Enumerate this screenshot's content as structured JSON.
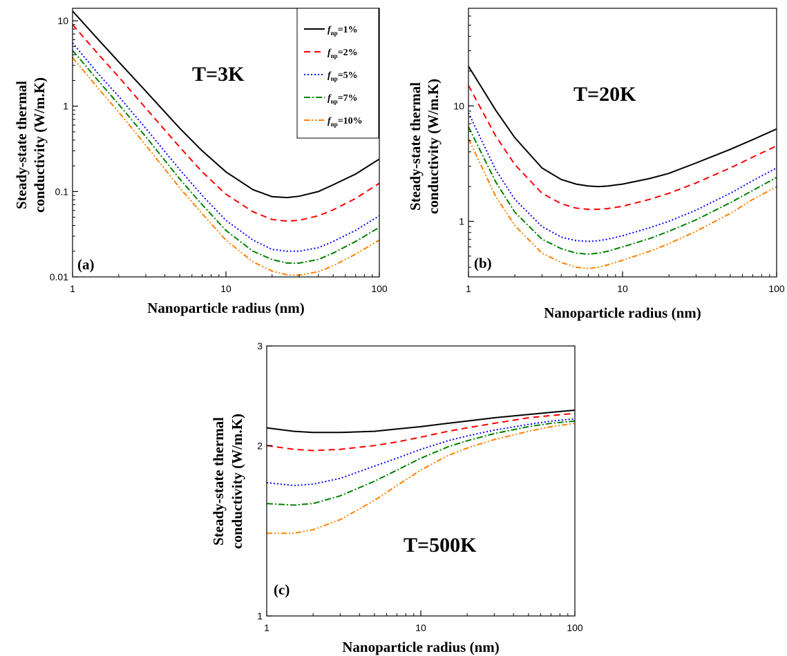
{
  "legend": {
    "entries": [
      {
        "var": "f",
        "sub": "np",
        "value": "=1%"
      },
      {
        "var": "f",
        "sub": "np",
        "value": "=2%"
      },
      {
        "var": "f",
        "sub": "np",
        "value": "=5%"
      },
      {
        "var": "f",
        "sub": "np",
        "value": "=7%"
      },
      {
        "var": "f",
        "sub": "np",
        "value": "=10%"
      }
    ]
  },
  "series_styles": [
    {
      "color": "#000000",
      "dash": "solid"
    },
    {
      "color": "#ff0000",
      "dash": "dashed"
    },
    {
      "color": "#0000ff",
      "dash": "dotted"
    },
    {
      "color": "#008000",
      "dash": "dash-dot"
    },
    {
      "color": "#ff8000",
      "dash": "dash-dot-dot"
    }
  ],
  "chart_data": [
    {
      "type": "line",
      "panel": "(a)",
      "annotation": "T=3K",
      "xlabel": "Nanoparticle radius (nm)",
      "ylabel_line1": "Steady-state thermal",
      "ylabel_line2": "conductivity (W/m.K)",
      "xscale": "log",
      "yscale": "log",
      "xlim": [
        1,
        100
      ],
      "ylim": [
        0.01,
        14
      ],
      "xticks": [
        {
          "v": 1,
          "label": "1"
        },
        {
          "v": 10,
          "label": "10"
        },
        {
          "v": 100,
          "label": "100"
        }
      ],
      "yticks": [
        {
          "v": 0.01,
          "label": "0.01"
        },
        {
          "v": 0.1,
          "label": "0.1"
        },
        {
          "v": 1,
          "label": "1"
        },
        {
          "v": 10,
          "label": "10"
        }
      ],
      "legend_position": "top-right",
      "x": [
        1,
        1.5,
        2,
        3,
        5,
        7,
        10,
        15,
        20,
        25,
        30,
        40,
        50,
        70,
        100
      ],
      "series": [
        {
          "name": "fnp=1%",
          "values": [
            13,
            5.8,
            3.3,
            1.5,
            0.55,
            0.3,
            0.17,
            0.105,
            0.087,
            0.085,
            0.088,
            0.1,
            0.12,
            0.16,
            0.24
          ]
        },
        {
          "name": "fnp=2%",
          "values": [
            9,
            3.9,
            2.2,
            0.95,
            0.33,
            0.17,
            0.093,
            0.058,
            0.047,
            0.045,
            0.046,
            0.052,
            0.061,
            0.083,
            0.125
          ]
        },
        {
          "name": "fnp=5%",
          "values": [
            5.5,
            2.3,
            1.3,
            0.55,
            0.18,
            0.09,
            0.046,
            0.027,
            0.021,
            0.02,
            0.02,
            0.022,
            0.026,
            0.035,
            0.052
          ]
        },
        {
          "name": "fnp=7%",
          "values": [
            4.5,
            1.9,
            1.05,
            0.44,
            0.14,
            0.07,
            0.035,
            0.02,
            0.016,
            0.0145,
            0.0145,
            0.016,
            0.019,
            0.026,
            0.038
          ]
        },
        {
          "name": "fnp=10%",
          "values": [
            3.7,
            1.55,
            0.85,
            0.35,
            0.11,
            0.055,
            0.027,
            0.015,
            0.0117,
            0.0106,
            0.0105,
            0.0115,
            0.0135,
            0.0185,
            0.027
          ]
        }
      ]
    },
    {
      "type": "line",
      "panel": "(b)",
      "annotation": "T=20K",
      "xlabel": "Nanoparticle radius (nm)",
      "ylabel_line1": "Steady-state thermal",
      "ylabel_line2": "conductivity (W/m.K)",
      "xscale": "log",
      "yscale": "log",
      "xlim": [
        1,
        100
      ],
      "ylim": [
        0.33,
        70
      ],
      "xticks": [
        {
          "v": 1,
          "label": "1"
        },
        {
          "v": 10,
          "label": "10"
        },
        {
          "v": 100,
          "label": "100"
        }
      ],
      "yticks": [
        {
          "v": 1,
          "label": "1"
        },
        {
          "v": 10,
          "label": "10"
        }
      ],
      "x": [
        1,
        1.5,
        2,
        3,
        4,
        5,
        6,
        7,
        8,
        10,
        15,
        20,
        30,
        50,
        70,
        100
      ],
      "series": [
        {
          "name": "fnp=1%",
          "values": [
            22,
            9.2,
            5.3,
            2.9,
            2.3,
            2.1,
            2.02,
            2.0,
            2.02,
            2.1,
            2.35,
            2.6,
            3.2,
            4.2,
            5.1,
            6.3
          ]
        },
        {
          "name": "fnp=2%",
          "values": [
            15,
            5.5,
            3.1,
            1.75,
            1.42,
            1.3,
            1.27,
            1.27,
            1.29,
            1.35,
            1.55,
            1.75,
            2.15,
            2.9,
            3.6,
            4.5
          ]
        },
        {
          "name": "fnp=5%",
          "values": [
            8.7,
            2.8,
            1.55,
            0.9,
            0.73,
            0.68,
            0.67,
            0.68,
            0.7,
            0.75,
            0.88,
            1.0,
            1.25,
            1.75,
            2.25,
            2.9
          ]
        },
        {
          "name": "fnp=7%",
          "values": [
            6.6,
            2.2,
            1.2,
            0.7,
            0.58,
            0.53,
            0.52,
            0.53,
            0.55,
            0.6,
            0.71,
            0.82,
            1.03,
            1.45,
            1.85,
            2.4
          ]
        },
        {
          "name": "fnp=10%",
          "values": [
            5.2,
            1.65,
            0.92,
            0.53,
            0.44,
            0.4,
            0.39,
            0.4,
            0.42,
            0.46,
            0.55,
            0.64,
            0.82,
            1.17,
            1.55,
            2.0
          ]
        }
      ]
    },
    {
      "type": "line",
      "panel": "(c)",
      "annotation": "T=500K",
      "xlabel": "Nanoparticle radius (nm)",
      "ylabel_line1": "Steady-state thermal",
      "ylabel_line2": "conductivity (W/m.K)",
      "xscale": "log",
      "yscale": "log",
      "xlim": [
        1,
        100
      ],
      "ylim": [
        1,
        3
      ],
      "xticks": [
        {
          "v": 1,
          "label": "1"
        },
        {
          "v": 10,
          "label": "10"
        },
        {
          "v": 100,
          "label": "100"
        }
      ],
      "yticks": [
        {
          "v": 1,
          "label": "1"
        },
        {
          "v": 2,
          "label": "2"
        },
        {
          "v": 3,
          "label": "3"
        }
      ],
      "x": [
        1,
        1.5,
        2,
        3,
        5,
        7,
        10,
        15,
        20,
        30,
        50,
        70,
        100
      ],
      "series": [
        {
          "name": "fnp=1%",
          "values": [
            2.15,
            2.12,
            2.11,
            2.11,
            2.12,
            2.14,
            2.16,
            2.19,
            2.21,
            2.24,
            2.27,
            2.29,
            2.31
          ]
        },
        {
          "name": "fnp=2%",
          "values": [
            2.0,
            1.97,
            1.96,
            1.97,
            2.0,
            2.03,
            2.07,
            2.12,
            2.15,
            2.19,
            2.24,
            2.26,
            2.28
          ]
        },
        {
          "name": "fnp=5%",
          "values": [
            1.72,
            1.7,
            1.71,
            1.75,
            1.84,
            1.9,
            1.97,
            2.04,
            2.08,
            2.13,
            2.18,
            2.21,
            2.23
          ]
        },
        {
          "name": "fnp=7%",
          "values": [
            1.58,
            1.57,
            1.58,
            1.63,
            1.73,
            1.81,
            1.9,
            1.99,
            2.04,
            2.1,
            2.16,
            2.19,
            2.21
          ]
        },
        {
          "name": "fnp=10%",
          "values": [
            1.4,
            1.4,
            1.42,
            1.48,
            1.6,
            1.7,
            1.81,
            1.92,
            1.98,
            2.05,
            2.12,
            2.16,
            2.19
          ]
        }
      ]
    }
  ]
}
